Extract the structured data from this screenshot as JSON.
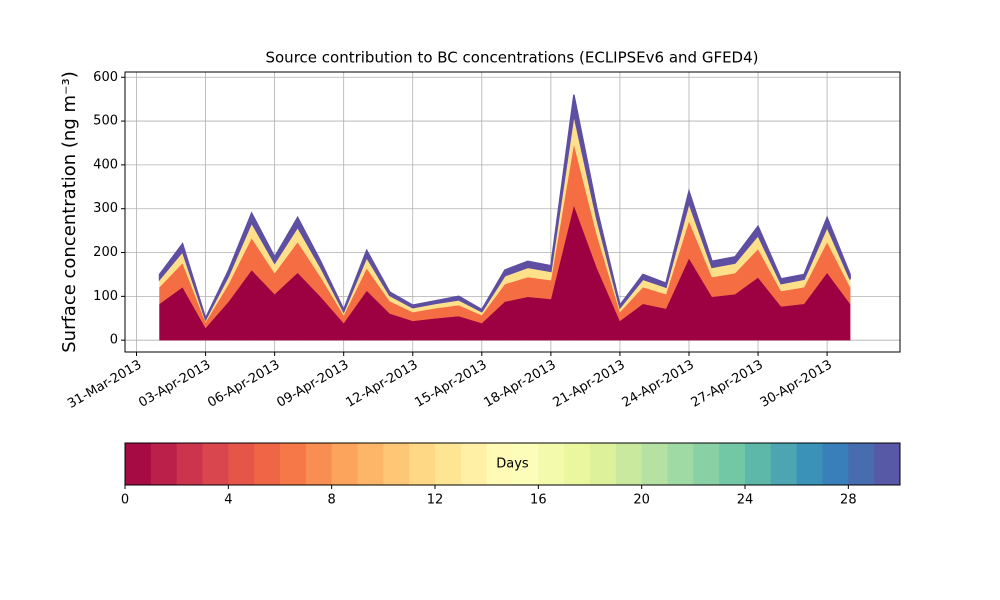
{
  "chart_data": {
    "type": "stacked_area",
    "title": "Source contribution to BC concentrations (ECLIPSEv6 and GFED4)",
    "y_label": "Surface concentration (ng m⁻³)",
    "x": [
      "2013-04-01",
      "2013-04-02",
      "2013-04-03",
      "2013-04-04",
      "2013-04-05",
      "2013-04-06",
      "2013-04-07",
      "2013-04-08",
      "2013-04-09",
      "2013-04-10",
      "2013-04-11",
      "2013-04-12",
      "2013-04-13",
      "2013-04-14",
      "2013-04-15",
      "2013-04-16",
      "2013-04-17",
      "2013-04-18",
      "2013-04-19",
      "2013-04-20",
      "2013-04-21",
      "2013-04-22",
      "2013-04-23",
      "2013-04-24",
      "2013-04-25",
      "2013-04-26",
      "2013-04-27",
      "2013-04-28",
      "2013-04-29",
      "2013-04-30",
      "2013-05-01"
    ],
    "series": [
      {
        "color": "#9e0142",
        "values": [
          83,
          121,
          28,
          88,
          160,
          105,
          154,
          99,
          39,
          113,
          61,
          44,
          50,
          55,
          39,
          88,
          99,
          94,
          308,
          165,
          44,
          83,
          72,
          187,
          99,
          105,
          143,
          77,
          83,
          154,
          83
        ]
      },
      {
        "color": "#f46d43",
        "values": [
          38,
          55,
          13,
          40,
          73,
          48,
          70,
          45,
          18,
          51,
          28,
          20,
          23,
          25,
          18,
          40,
          45,
          43,
          140,
          75,
          20,
          38,
          33,
          85,
          45,
          48,
          65,
          35,
          38,
          70,
          38
        ]
      },
      {
        "color": "#fee08b",
        "values": [
          18,
          26,
          6,
          19,
          35,
          23,
          34,
          22,
          8,
          25,
          13,
          10,
          11,
          12,
          8,
          19,
          22,
          20,
          67,
          36,
          10,
          18,
          16,
          41,
          22,
          23,
          31,
          17,
          18,
          34,
          18
        ]
      },
      {
        "color": "#5e4fa2",
        "values": [
          11,
          18,
          3,
          13,
          22,
          14,
          22,
          14,
          5,
          16,
          8,
          6,
          6,
          8,
          5,
          13,
          14,
          13,
          45,
          24,
          6,
          11,
          9,
          27,
          14,
          14,
          21,
          11,
          11,
          22,
          11
        ]
      }
    ],
    "xlim": [
      "2013-03-30T12:00",
      "2013-05-03T04:00"
    ],
    "xticks": [
      {
        "value": "2013-03-31",
        "label": "31-Mar-2013"
      },
      {
        "value": "2013-04-03",
        "label": "03-Apr-2013"
      },
      {
        "value": "2013-04-06",
        "label": "06-Apr-2013"
      },
      {
        "value": "2013-04-09",
        "label": "09-Apr-2013"
      },
      {
        "value": "2013-04-12",
        "label": "12-Apr-2013"
      },
      {
        "value": "2013-04-15",
        "label": "15-Apr-2013"
      },
      {
        "value": "2013-04-18",
        "label": "18-Apr-2013"
      },
      {
        "value": "2013-04-21",
        "label": "21-Apr-2013"
      },
      {
        "value": "2013-04-24",
        "label": "24-Apr-2013"
      },
      {
        "value": "2013-04-27",
        "label": "27-Apr-2013"
      },
      {
        "value": "2013-04-30",
        "label": "30-Apr-2013"
      }
    ],
    "ylim": [
      -27,
      612
    ],
    "yticks": [
      0,
      100,
      200,
      300,
      400,
      500,
      600
    ],
    "grid": true,
    "colorbar": {
      "label": "Days",
      "lim": [
        0,
        30
      ],
      "bins": 30,
      "ticks": [
        0,
        4,
        8,
        12,
        16,
        20,
        24,
        28
      ],
      "colormap": [
        "#9e0142",
        "#d53e4f",
        "#f46d43",
        "#fdae61",
        "#fee08b",
        "#ffffbf",
        "#e6f598",
        "#abdda4",
        "#66c2a5",
        "#3288bd",
        "#5e4fa2"
      ]
    }
  }
}
